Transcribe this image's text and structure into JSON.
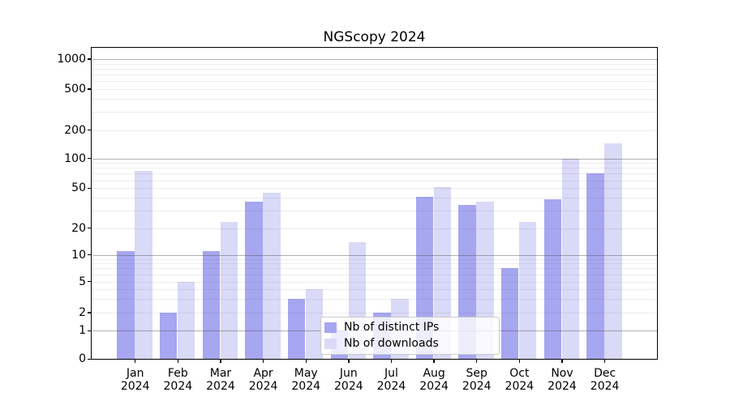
{
  "chart_data": {
    "type": "bar",
    "title": "NGScopy 2024",
    "categories": [
      "Jan",
      "Feb",
      "Mar",
      "Apr",
      "May",
      "Jun",
      "Jul",
      "Aug",
      "Sep",
      "Oct",
      "Nov",
      "Dec"
    ],
    "year_label": "2024",
    "series": [
      {
        "name": "Nb of distinct IPs",
        "color": "#a6a6f1",
        "values": [
          11,
          2,
          11,
          37,
          3,
          1,
          2,
          41,
          34,
          7,
          39,
          70
        ]
      },
      {
        "name": "Nb of downloads",
        "color": "#d9d9f8",
        "values": [
          75,
          5,
          23,
          45,
          4,
          14,
          3,
          51,
          37,
          23,
          100,
          145
        ]
      }
    ],
    "yticks": [
      0,
      1,
      2,
      5,
      10,
      20,
      50,
      100,
      200,
      500,
      1000
    ],
    "y_scale": "symlog",
    "ylim": [
      0,
      1400
    ],
    "grid": "on",
    "legend_position": "inside-bottom-center"
  }
}
